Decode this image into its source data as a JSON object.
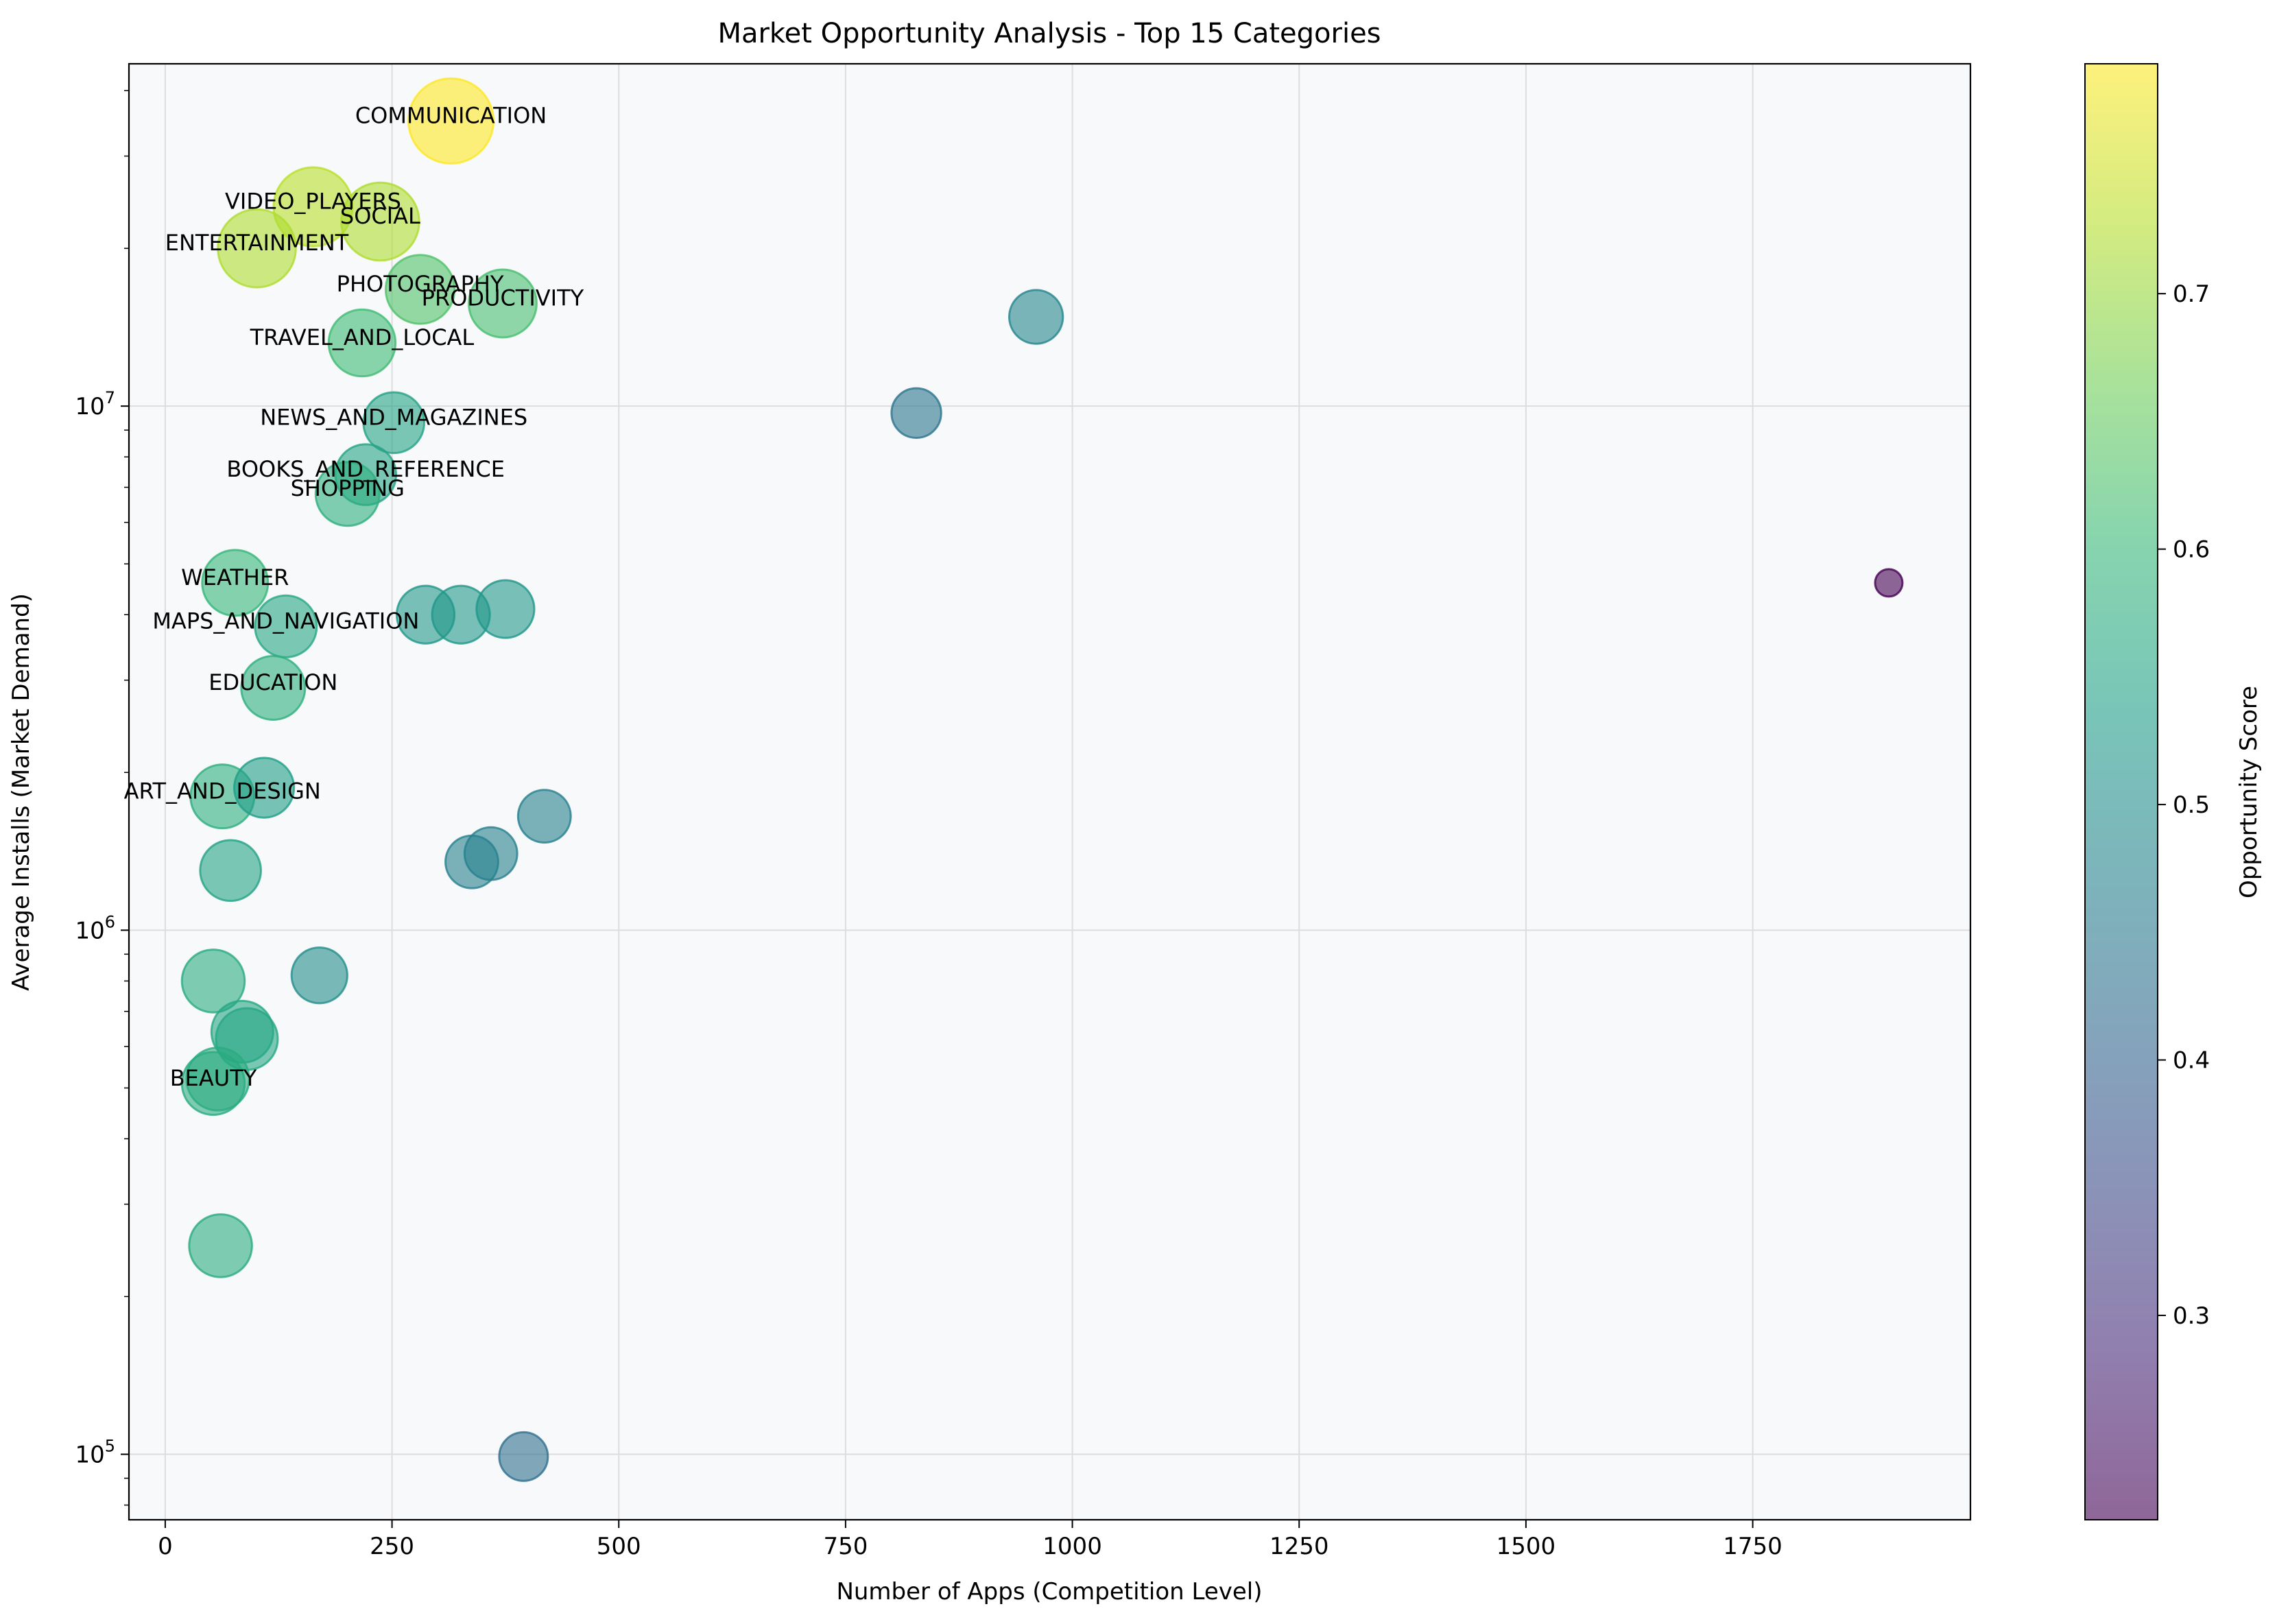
{
  "chart_data": {
    "type": "scatter",
    "title": "Market Opportunity Analysis - Top 15 Categories",
    "xlabel": "Number of Apps (Competition Level)",
    "ylabel": "Average Installs (Market Demand)",
    "colorbar_label": "Opportunity Score",
    "xlim": [
      -40,
      1990
    ],
    "ylim": [
      75000,
      45000000
    ],
    "yscale": "log",
    "grid": true,
    "x_ticks": [
      0,
      250,
      500,
      750,
      1000,
      1250,
      1500,
      1750
    ],
    "x_tick_labels": [
      "0",
      "250",
      "500",
      "750",
      "1000",
      "1250",
      "1500",
      "1750"
    ],
    "y_ticks": [
      100000,
      1000000,
      10000000
    ],
    "y_tick_labels": [
      {
        "base": "10",
        "exp": "5"
      },
      {
        "base": "10",
        "exp": "6"
      },
      {
        "base": "10",
        "exp": "7"
      }
    ],
    "colorbar_range": [
      0.22,
      0.79
    ],
    "colorbar_ticks": [
      0.3,
      0.4,
      0.5,
      0.6,
      0.7
    ],
    "colorbar_tick_labels": [
      "0.3",
      "0.4",
      "0.5",
      "0.6",
      "0.7"
    ],
    "colormap": [
      "#440154",
      "#482878",
      "#3e4989",
      "#31688e",
      "#26828e",
      "#1f9e89",
      "#35b779",
      "#6ece58",
      "#b5de2b",
      "#fde725"
    ],
    "point_alpha": 0.6,
    "plot_background": "#f8f9fa",
    "points": [
      {
        "x": 315,
        "y": 35000000,
        "score": 0.79,
        "label": "COMMUNICATION"
      },
      {
        "x": 163,
        "y": 24000000,
        "score": 0.73,
        "label": "VIDEO_PLAYERS"
      },
      {
        "x": 237,
        "y": 22500000,
        "score": 0.72,
        "label": "SOCIAL"
      },
      {
        "x": 101,
        "y": 20000000,
        "score": 0.72,
        "label": "ENTERTAINMENT"
      },
      {
        "x": 281,
        "y": 16700000,
        "score": 0.63,
        "label": "PHOTOGRAPHY"
      },
      {
        "x": 372,
        "y": 15700000,
        "score": 0.62,
        "label": "PRODUCTIVITY"
      },
      {
        "x": 217,
        "y": 13200000,
        "score": 0.61,
        "label": "TRAVEL_AND_LOCAL"
      },
      {
        "x": 252,
        "y": 9300000,
        "score": 0.55,
        "label": "NEWS_AND_MAGAZINES"
      },
      {
        "x": 221,
        "y": 7400000,
        "score": 0.55,
        "label": "BOOKS_AND_REFERENCE"
      },
      {
        "x": 201,
        "y": 6800000,
        "score": 0.58,
        "label": "SHOPPING"
      },
      {
        "x": 77,
        "y": 4600000,
        "score": 0.6,
        "label": "WEATHER"
      },
      {
        "x": 133,
        "y": 3800000,
        "score": 0.56,
        "label": "MAPS_AND_NAVIGATION"
      },
      {
        "x": 119,
        "y": 2900000,
        "score": 0.58,
        "label": "EDUCATION"
      },
      {
        "x": 63,
        "y": 1800000,
        "score": 0.58,
        "label": "ART_AND_DESIGN"
      },
      {
        "x": 53,
        "y": 510000,
        "score": 0.57,
        "label": "BEAUTY"
      },
      {
        "x": 960,
        "y": 14800000,
        "score": 0.48,
        "label": ""
      },
      {
        "x": 828,
        "y": 9700000,
        "score": 0.44,
        "label": ""
      },
      {
        "x": 1900,
        "y": 4600000,
        "score": 0.22,
        "label": ""
      },
      {
        "x": 287,
        "y": 4000000,
        "score": 0.52,
        "label": ""
      },
      {
        "x": 326,
        "y": 4000000,
        "score": 0.52,
        "label": ""
      },
      {
        "x": 375,
        "y": 4100000,
        "score": 0.52,
        "label": ""
      },
      {
        "x": 109,
        "y": 1870000,
        "score": 0.54,
        "label": ""
      },
      {
        "x": 418,
        "y": 1650000,
        "score": 0.47,
        "label": ""
      },
      {
        "x": 359,
        "y": 1400000,
        "score": 0.47,
        "label": ""
      },
      {
        "x": 338,
        "y": 1350000,
        "score": 0.47,
        "label": ""
      },
      {
        "x": 72,
        "y": 1300000,
        "score": 0.55,
        "label": ""
      },
      {
        "x": 170,
        "y": 820000,
        "score": 0.5,
        "label": ""
      },
      {
        "x": 53,
        "y": 800000,
        "score": 0.57,
        "label": ""
      },
      {
        "x": 85,
        "y": 640000,
        "score": 0.56,
        "label": ""
      },
      {
        "x": 90,
        "y": 620000,
        "score": 0.56,
        "label": ""
      },
      {
        "x": 58,
        "y": 520000,
        "score": 0.57,
        "label": ""
      },
      {
        "x": 61,
        "y": 250000,
        "score": 0.57,
        "label": ""
      },
      {
        "x": 395,
        "y": 99000,
        "score": 0.43,
        "label": ""
      }
    ]
  }
}
